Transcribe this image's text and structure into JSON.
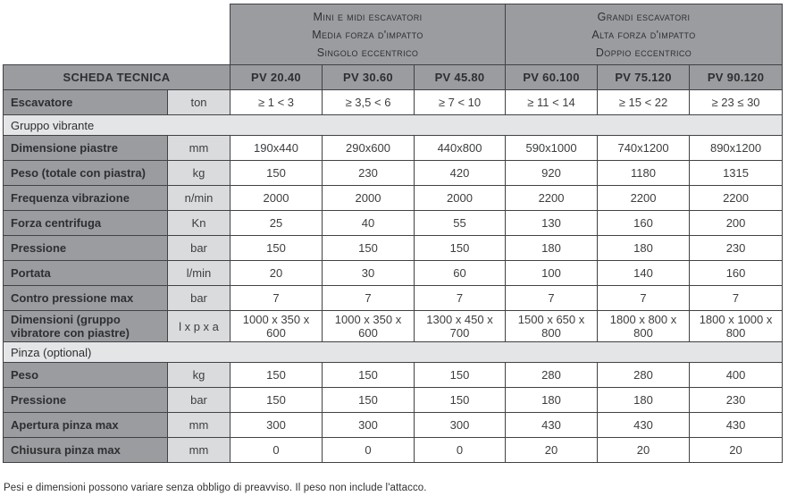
{
  "header": {
    "groups": [
      {
        "name": "mini-midi",
        "lines": [
          "Mini e midi escavatori",
          "Media forza d'impatto",
          "Singolo eccentrico"
        ]
      },
      {
        "name": "grandi",
        "lines": [
          "Grandi escavatori",
          "Alta forza d'impatto",
          "Doppio eccentrico"
        ]
      }
    ],
    "sheet_title": "SCHEDA TECNICA",
    "models": [
      "PV 20.40",
      "PV 30.60",
      "PV 45.80",
      "PV 60.100",
      "PV 75.120",
      "PV 90.120"
    ]
  },
  "rows": [
    {
      "type": "data",
      "label": "Escavatore",
      "unit": "ton",
      "values": [
        "≥ 1 < 3",
        "≥ 3,5 < 6",
        "≥ 7 < 10",
        "≥ 11 < 14",
        "≥ 15 < 22",
        "≥ 23 ≤ 30"
      ]
    },
    {
      "type": "section",
      "label": "Gruppo vibrante"
    },
    {
      "type": "data",
      "label": "Dimensione piastre",
      "unit": "mm",
      "values": [
        "190x440",
        "290x600",
        "440x800",
        "590x1000",
        "740x1200",
        "890x1200"
      ]
    },
    {
      "type": "data",
      "label": "Peso (totale con piastra)",
      "unit": "kg",
      "values": [
        "150",
        "230",
        "420",
        "920",
        "1180",
        "1315"
      ]
    },
    {
      "type": "data",
      "label": "Frequenza vibrazione",
      "unit": "n/min",
      "values": [
        "2000",
        "2000",
        "2000",
        "2200",
        "2200",
        "2200"
      ]
    },
    {
      "type": "data",
      "label": "Forza centrifuga",
      "unit": "Kn",
      "values": [
        "25",
        "40",
        "55",
        "130",
        "160",
        "200"
      ]
    },
    {
      "type": "data",
      "label": "Pressione",
      "unit": "bar",
      "values": [
        "150",
        "150",
        "150",
        "180",
        "180",
        "230"
      ]
    },
    {
      "type": "data",
      "label": "Portata",
      "unit": "l/min",
      "values": [
        "20",
        "30",
        "60",
        "100",
        "140",
        "160"
      ]
    },
    {
      "type": "data",
      "label": "Contro pressione max",
      "unit": "bar",
      "values": [
        "7",
        "7",
        "7",
        "7",
        "7",
        "7"
      ]
    },
    {
      "type": "data",
      "label": "Dimensioni (gruppo vibratore con piastre)",
      "unit": "l x p x a",
      "values": [
        "1000 x 350 x 600",
        "1000 x 350 x 600",
        "1300 x 450 x 700",
        "1500 x 650 x 800",
        "1800 x 800 x 800",
        "1800 x 1000 x 800"
      ]
    },
    {
      "type": "section",
      "label": "Pinza (optional)"
    },
    {
      "type": "data",
      "label": "Peso",
      "unit": "kg",
      "values": [
        "150",
        "150",
        "150",
        "280",
        "280",
        "400"
      ]
    },
    {
      "type": "data",
      "label": "Pressione",
      "unit": "bar",
      "values": [
        "150",
        "150",
        "150",
        "180",
        "180",
        "230"
      ]
    },
    {
      "type": "data",
      "label": "Apertura pinza max",
      "unit": "mm",
      "values": [
        "300",
        "300",
        "300",
        "430",
        "430",
        "430"
      ]
    },
    {
      "type": "data",
      "label": "Chiusura pinza max",
      "unit": "mm",
      "values": [
        "0",
        "0",
        "0",
        "20",
        "20",
        "20"
      ]
    }
  ],
  "footnote": "Pesi e dimensioni possono variare senza obbligo di preavviso. Il peso non include l'attacco.",
  "colors": {
    "header_gray": "#9a9c9f",
    "unit_gray": "#dadbdd",
    "section_gray": "#e4e5e7",
    "border": "#414244",
    "text_dark": "#2d2f31"
  }
}
